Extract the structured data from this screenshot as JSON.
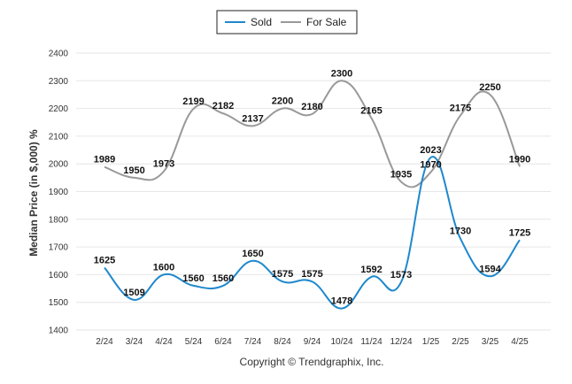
{
  "chart_data": {
    "type": "line",
    "categories": [
      "2/24",
      "3/24",
      "4/24",
      "5/24",
      "6/24",
      "7/24",
      "8/24",
      "9/24",
      "10/24",
      "11/24",
      "12/24",
      "1/25",
      "2/25",
      "3/25",
      "4/25"
    ],
    "series": [
      {
        "name": "Sold",
        "color": "#1f88cc",
        "values": [
          1625,
          1509,
          1600,
          1560,
          1560,
          1650,
          1575,
          1575,
          1478,
          1592,
          1573,
          2023,
          1730,
          1594,
          1725
        ]
      },
      {
        "name": "For Sale",
        "color": "#999999",
        "values": [
          1989,
          1950,
          1973,
          2199,
          2182,
          2137,
          2200,
          2180,
          2300,
          2165,
          1935,
          1970,
          2175,
          2250,
          1990
        ]
      }
    ],
    "ylabel": "Median Price (in $,000) %",
    "xlabel": "",
    "ylim": [
      1400,
      2400
    ],
    "yticks": [
      1400,
      1500,
      1600,
      1700,
      1800,
      1900,
      2000,
      2100,
      2200,
      2300,
      2400
    ],
    "grid": true,
    "legend": "top-center",
    "footer": "Copyright © Trendgraphix, Inc."
  }
}
